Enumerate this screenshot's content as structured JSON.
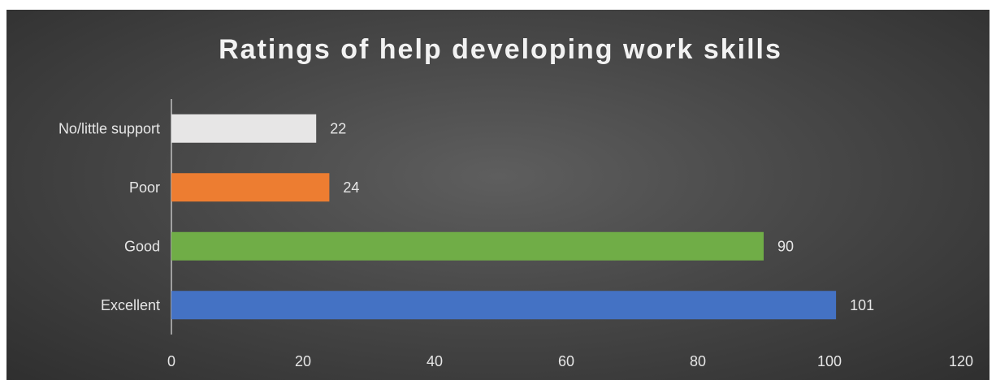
{
  "chart_data": {
    "type": "bar",
    "orientation": "horizontal",
    "title": "Ratings of help developing work skills",
    "categories": [
      "Excellent",
      "Good",
      "Poor",
      "No/little support"
    ],
    "values": [
      101,
      90,
      24,
      22
    ],
    "data_labels": [
      "101",
      "90",
      "24",
      "22"
    ],
    "colors": [
      "#4472c4",
      "#70ad47",
      "#ed7d31",
      "#e7e6e6"
    ],
    "xlim": [
      0,
      120
    ],
    "x_ticks": [
      0,
      20,
      40,
      60,
      80,
      100,
      120
    ],
    "x_tick_labels": [
      "0",
      "20",
      "40",
      "60",
      "80",
      "100",
      "120"
    ],
    "grid": false,
    "legend": "none",
    "background": "#4a4a4a"
  }
}
